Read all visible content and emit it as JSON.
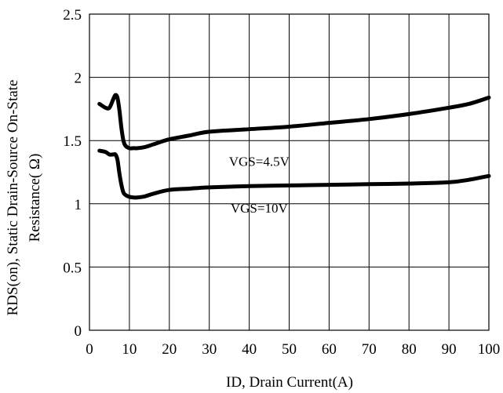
{
  "chart_data": {
    "type": "line",
    "xlabel": "ID, Drain Current(A)",
    "ylabel_line1": "RDS(on), Static Drain-Source On-State",
    "ylabel_line2": "Resistance( Ω)",
    "xlim": [
      0,
      100
    ],
    "ylim": [
      0,
      2.5
    ],
    "x_ticks": [
      0,
      10,
      20,
      30,
      40,
      50,
      60,
      70,
      80,
      90,
      100
    ],
    "y_ticks": [
      0,
      0.5,
      1,
      1.5,
      2,
      2.5
    ],
    "y_tick_labels": [
      "0",
      "0.5",
      "1",
      "1.5",
      "2",
      "2.5"
    ],
    "grid": true,
    "series": [
      {
        "name": "VGS=4.5V",
        "x": [
          2.5,
          4,
          5,
          6,
          6.5,
          7,
          7.5,
          8,
          8.5,
          9,
          10,
          11,
          12,
          14,
          16,
          20,
          25,
          30,
          40,
          50,
          60,
          70,
          80,
          90,
          95,
          100
        ],
        "y": [
          1.79,
          1.76,
          1.76,
          1.83,
          1.86,
          1.84,
          1.74,
          1.6,
          1.5,
          1.46,
          1.44,
          1.44,
          1.44,
          1.45,
          1.47,
          1.51,
          1.54,
          1.57,
          1.59,
          1.61,
          1.64,
          1.67,
          1.71,
          1.76,
          1.79,
          1.84
        ]
      },
      {
        "name": "VGS=10V",
        "x": [
          2.5,
          4,
          5,
          6,
          6.5,
          7,
          7.5,
          8,
          8.5,
          9,
          10,
          11,
          12,
          14,
          16,
          20,
          25,
          30,
          40,
          50,
          60,
          70,
          80,
          90,
          95,
          100
        ],
        "y": [
          1.42,
          1.41,
          1.39,
          1.39,
          1.39,
          1.35,
          1.24,
          1.15,
          1.09,
          1.07,
          1.055,
          1.05,
          1.05,
          1.06,
          1.08,
          1.11,
          1.12,
          1.13,
          1.14,
          1.145,
          1.15,
          1.155,
          1.16,
          1.17,
          1.19,
          1.22
        ]
      }
    ],
    "annotations": [
      {
        "text": "VGS=4.5V",
        "x": 42.5,
        "y": 1.3
      },
      {
        "text": "VGS=10V",
        "x": 42.5,
        "y": 0.93
      }
    ],
    "line_color": "#000000"
  }
}
